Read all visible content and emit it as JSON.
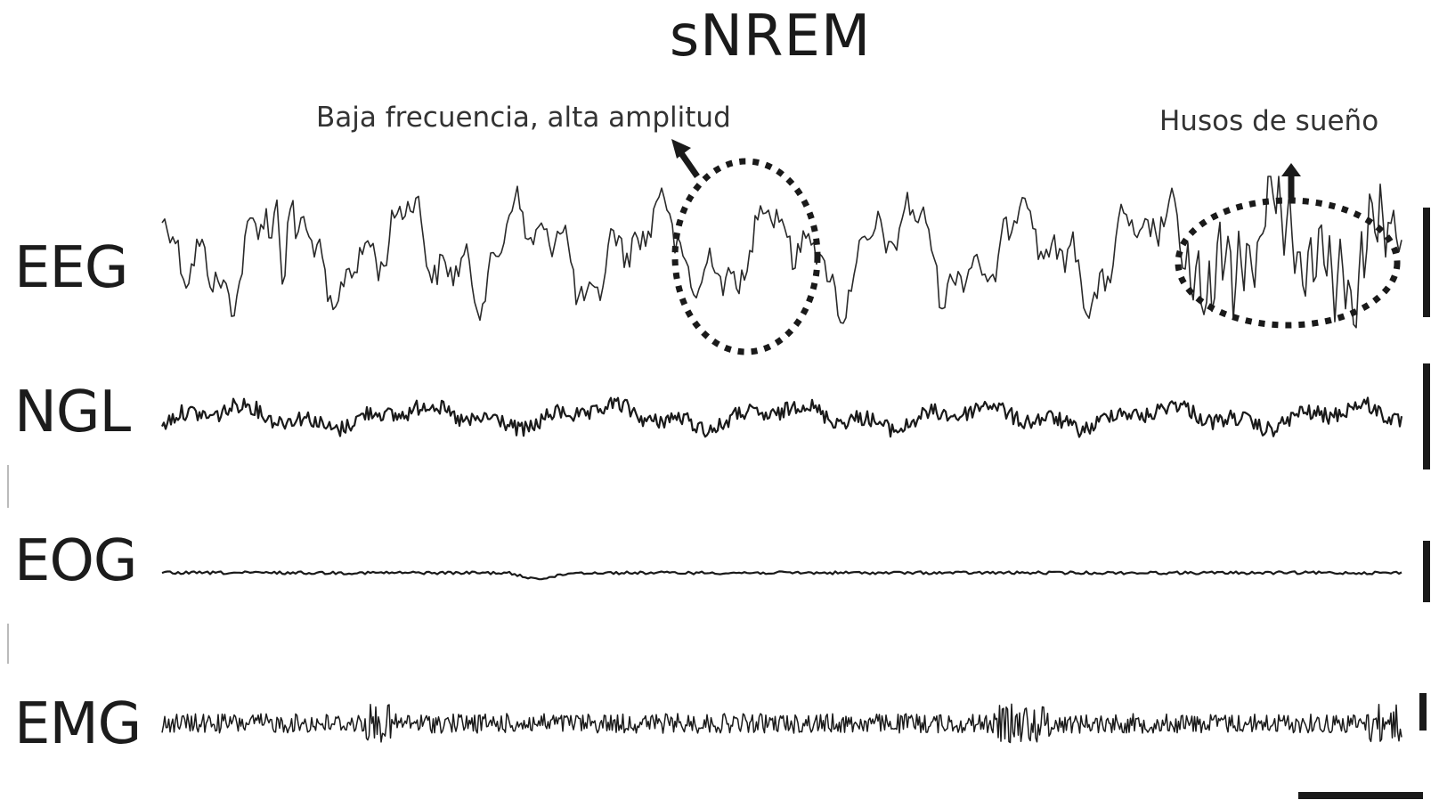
{
  "title": "sNREM",
  "annotations": {
    "low_freq_high_amp": "Baja frecuencia, alta amplitud",
    "spindles": "Husos de sueño"
  },
  "channels": [
    {
      "id": "eeg",
      "label": "EEG"
    },
    {
      "id": "ngl",
      "label": "NGL"
    },
    {
      "id": "eog",
      "label": "EOG"
    },
    {
      "id": "emg",
      "label": "EMG"
    }
  ],
  "colors": {
    "trace": "#1a1a1a",
    "eeg_trace": "#2a2a2a"
  }
}
